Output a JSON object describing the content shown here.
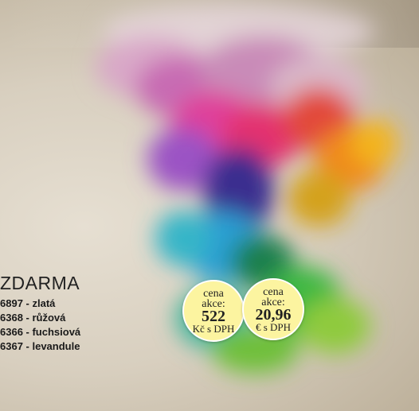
{
  "promo": {
    "headline": "ZDARMA",
    "items": [
      "6897 - zlatá",
      "6368 - růžová",
      "6366 - fuchsiová",
      "6367 - levandule"
    ],
    "badges": [
      {
        "label": "cena akce:",
        "price": "522",
        "note": "Kč s DPH"
      },
      {
        "label": "cena akce:",
        "price": "20,96",
        "note": "€ s DPH"
      }
    ]
  }
}
